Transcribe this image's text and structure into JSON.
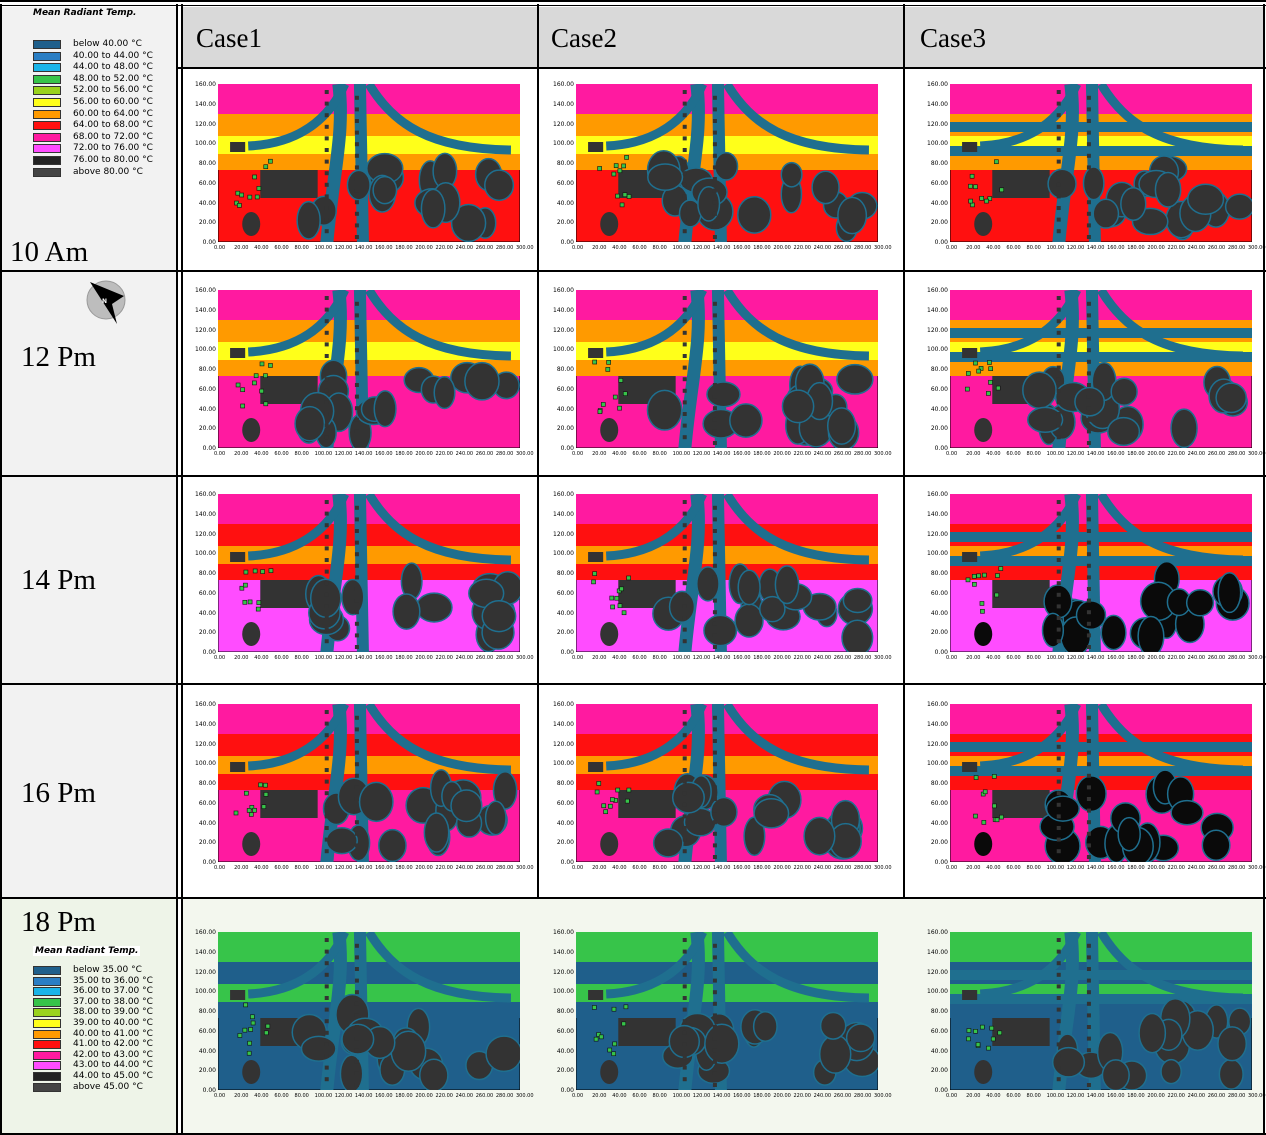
{
  "headers": [
    "Case1",
    "Case2",
    "Case3"
  ],
  "times": [
    "10 Am",
    "12 Pm",
    "14 Pm",
    "16 Pm",
    "18 Pm"
  ],
  "legend_top": {
    "title": "Mean Radiant Temp.",
    "items": [
      {
        "label": "below 40.00 °C",
        "color": "#1f5f8b"
      },
      {
        "label": "40.00 to 44.00 °C",
        "color": "#2a7ec4"
      },
      {
        "label": "44.00 to 48.00 °C",
        "color": "#1ab4e8"
      },
      {
        "label": "48.00 to 52.00 °C",
        "color": "#37c44a"
      },
      {
        "label": "52.00 to 56.00 °C",
        "color": "#9ad21e"
      },
      {
        "label": "56.00 to 60.00 °C",
        "color": "#ffff1a"
      },
      {
        "label": "60.00 to 64.00 °C",
        "color": "#ff9a00"
      },
      {
        "label": "64.00 to 68.00 °C",
        "color": "#ff1010"
      },
      {
        "label": "68.00 to 72.00 °C",
        "color": "#ff1aa0"
      },
      {
        "label": "72.00 to 76.00 °C",
        "color": "#ff4cff"
      },
      {
        "label": "76.00 to 80.00 °C",
        "color": "#222222"
      },
      {
        "label": "above 80.00 °C",
        "color": "#444444"
      }
    ]
  },
  "legend_bottom": {
    "title": "Mean Radiant Temp.",
    "items": [
      {
        "label": "below 35.00 °C",
        "color": "#1f5f8b"
      },
      {
        "label": "35.00 to 36.00 °C",
        "color": "#2a7ec4"
      },
      {
        "label": "36.00 to 37.00 °C",
        "color": "#1ab4e8"
      },
      {
        "label": "37.00 to 38.00 °C",
        "color": "#37c44a"
      },
      {
        "label": "38.00 to 39.00 °C",
        "color": "#9ad21e"
      },
      {
        "label": "39.00 to 40.00 °C",
        "color": "#ffff1a"
      },
      {
        "label": "40.00 to 41.00 °C",
        "color": "#ff9a00"
      },
      {
        "label": "41.00 to 42.00 °C",
        "color": "#ff1010"
      },
      {
        "label": "42.00 to 43.00 °C",
        "color": "#ff1aa0"
      },
      {
        "label": "43.00 to 44.00 °C",
        "color": "#ff4cff"
      },
      {
        "label": "44.00 to 45.00 °C",
        "color": "#222222"
      },
      {
        "label": "above 45.00 °C",
        "color": "#444444"
      }
    ]
  },
  "compass_letter": "N",
  "y_ticks": [
    "160.00",
    "140.00",
    "120.00",
    "100.00",
    "80.00",
    "60.00",
    "40.00",
    "20.00",
    "0.00"
  ],
  "x_ticks": [
    "0.00",
    "20.00",
    "40.00",
    "60.00",
    "80.00",
    "100.00",
    "120.00",
    "140.00",
    "160.00",
    "180.00",
    "200.00",
    "220.00",
    "240.00",
    "260.00",
    "280.00",
    "300.00"
  ],
  "plot_themes": {
    "10 Am": {
      "bg": "#ff1010",
      "band1": "#ff9a00",
      "band2": "#ffff1a",
      "top": "#ff1aa0"
    },
    "12 Pm": {
      "bg": "#ff1aa0",
      "band1": "#ff9a00",
      "band2": "#ffff1a",
      "top": "#ff1aa0"
    },
    "14 Pm": {
      "bg": "#ff4cff",
      "band1": "#ff1010",
      "band2": "#ff9a00",
      "top": "#ff1aa0"
    },
    "16 Pm": {
      "bg": "#ff1aa0",
      "band1": "#ff1010",
      "band2": "#ff9a00",
      "top": "#ff1aa0"
    },
    "18 Pm": {
      "bg": "#1f5f8b",
      "band1": "#1f5f8b",
      "band2": "#37c44a",
      "top": "#37c44a"
    }
  }
}
